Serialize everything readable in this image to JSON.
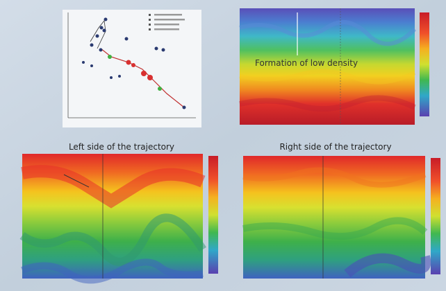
{
  "figure": {
    "top_right": {
      "annotation": "Formation of low density"
    },
    "bottom_left": {
      "title": "Left side of the trajectory"
    },
    "bottom_right": {
      "title": "Right side of the trajectory"
    }
  }
}
